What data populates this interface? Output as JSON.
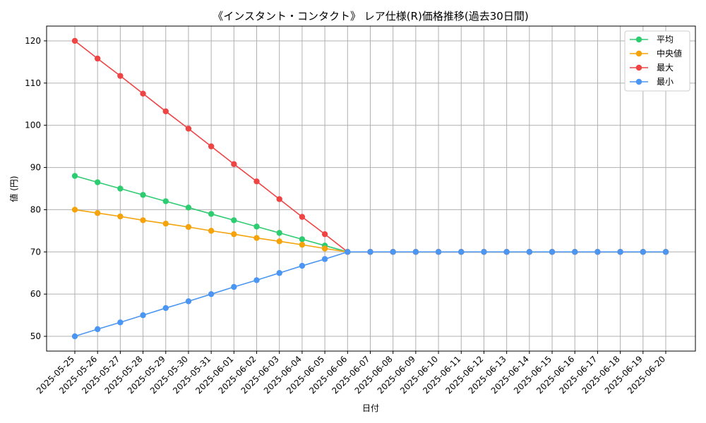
{
  "chart_data": {
    "type": "line",
    "title": "《インスタント・コンタクト》 レア仕様(R)価格推移(過去30日間)",
    "xlabel": "日付",
    "ylabel": "値 (円)",
    "ylim": [
      46.5,
      123.5
    ],
    "yticks": [
      50,
      60,
      70,
      80,
      90,
      100,
      110,
      120
    ],
    "grid": true,
    "legend_position": "top-right",
    "categories": [
      "2025-05-25",
      "2025-05-26",
      "2025-05-27",
      "2025-05-28",
      "2025-05-29",
      "2025-05-30",
      "2025-05-31",
      "2025-06-01",
      "2025-06-02",
      "2025-06-03",
      "2025-06-04",
      "2025-06-05",
      "2025-06-06",
      "2025-06-07",
      "2025-06-08",
      "2025-06-09",
      "2025-06-10",
      "2025-06-11",
      "2025-06-12",
      "2025-06-13",
      "2025-06-14",
      "2025-06-15",
      "2025-06-16",
      "2025-06-17",
      "2025-06-18",
      "2025-06-19",
      "2025-06-20"
    ],
    "series": [
      {
        "name": "平均",
        "color": "#2ecc71",
        "values": [
          88,
          86.5,
          85,
          83.5,
          82,
          80.5,
          79,
          77.5,
          76,
          74.5,
          73,
          71.5,
          70,
          70,
          70,
          70,
          70,
          70,
          70,
          70,
          70,
          70,
          70,
          70,
          70,
          70,
          70
        ]
      },
      {
        "name": "中央値",
        "color": "#f5a30a",
        "values": [
          80,
          79.2,
          78.4,
          77.5,
          76.7,
          75.9,
          75,
          74.2,
          73.3,
          72.5,
          71.7,
          70.8,
          70,
          70,
          70,
          70,
          70,
          70,
          70,
          70,
          70,
          70,
          70,
          70,
          70,
          70,
          70
        ]
      },
      {
        "name": "最大",
        "color": "#ef4444",
        "values": [
          120,
          115.8,
          111.7,
          107.5,
          103.3,
          99.2,
          95,
          90.8,
          86.7,
          82.5,
          78.3,
          74.2,
          70,
          70,
          70,
          70,
          70,
          70,
          70,
          70,
          70,
          70,
          70,
          70,
          70,
          70,
          70
        ]
      },
      {
        "name": "最小",
        "color": "#4b96f3",
        "values": [
          50,
          51.7,
          53.3,
          55,
          56.7,
          58.3,
          60,
          61.7,
          63.3,
          65,
          66.7,
          68.3,
          70,
          70,
          70,
          70,
          70,
          70,
          70,
          70,
          70,
          70,
          70,
          70,
          70,
          70,
          70
        ]
      }
    ]
  }
}
